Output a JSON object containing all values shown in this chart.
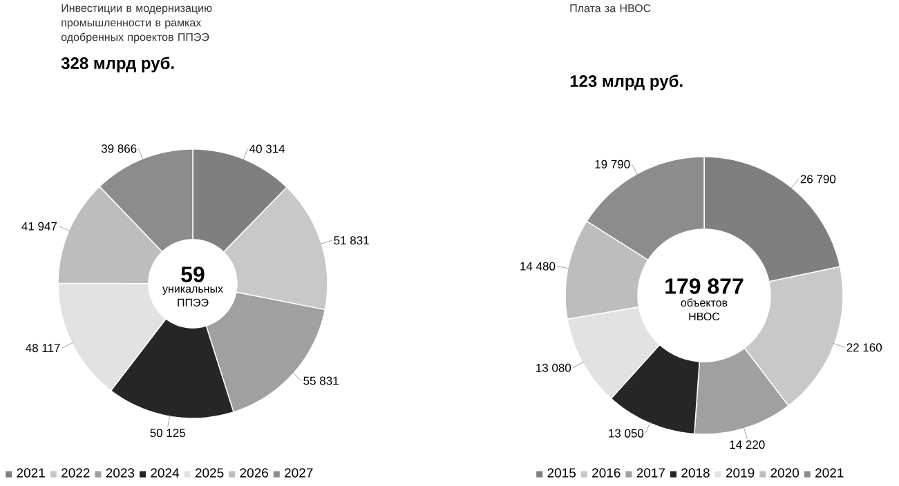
{
  "chart_data": [
    {
      "type": "donut",
      "title": "Инвестиции в модернизацию промышленности в рамках одобренных проектов ППЭЭ",
      "subtitle": "328 млрд руб.",
      "categories": [
        "2021",
        "2022",
        "2023",
        "2024",
        "2025",
        "2026",
        "2027"
      ],
      "values": [
        40314,
        51831,
        55831,
        50125,
        48117,
        41947,
        39866
      ],
      "value_labels": [
        "40 314",
        "51 831",
        "55 831",
        "50 125",
        "48 117",
        "41 947",
        "39 866"
      ],
      "colors": [
        "#7f7f7f",
        "#c8c8c8",
        "#a0a0a0",
        "#262626",
        "#e2e2e2",
        "#bdbdbd",
        "#8c8c8c"
      ],
      "annotations": [
        "59",
        "уникальных ППЭЭ"
      ],
      "legend": "bottom"
    },
    {
      "type": "donut",
      "title": "Плата за НВОС",
      "subtitle": "123 млрд руб.",
      "categories": [
        "2015",
        "2016",
        "2017",
        "2018",
        "2019",
        "2020",
        "2021"
      ],
      "values": [
        26790,
        22160,
        14220,
        13050,
        13080,
        14480,
        19790
      ],
      "value_labels": [
        "26 790",
        "22 160",
        "14 220",
        "13 050",
        "13 080",
        "14 480",
        "19 790"
      ],
      "colors": [
        "#7f7f7f",
        "#c8c8c8",
        "#a0a0a0",
        "#262626",
        "#e2e2e2",
        "#bdbdbd",
        "#8c8c8c"
      ],
      "annotations": [
        "179 877",
        "объектов НВОС"
      ],
      "legend": "bottom"
    }
  ]
}
